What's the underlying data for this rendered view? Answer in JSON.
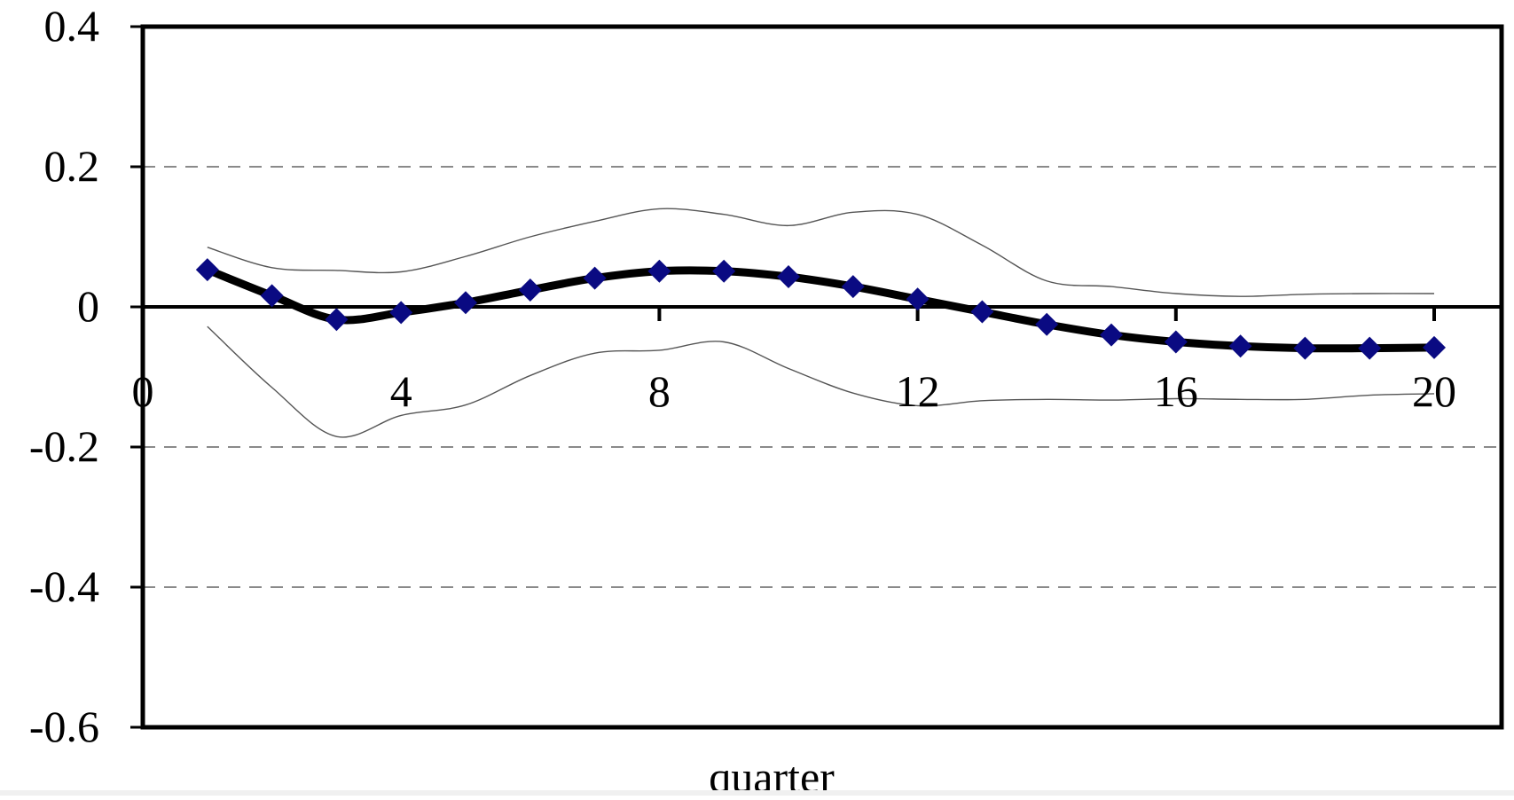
{
  "chart_data": {
    "type": "line",
    "title": "",
    "xlabel": "quarter",
    "ylabel": "",
    "xlim": [
      0,
      20
    ],
    "ylim": [
      -0.6,
      0.4
    ],
    "x_ticks": [
      0,
      4,
      8,
      12,
      16,
      20
    ],
    "x_tick_labels": [
      "0",
      "4",
      "8",
      "12",
      "16",
      "20"
    ],
    "y_ticks": [
      0.4,
      0.2,
      0,
      -0.2,
      -0.4,
      -0.6
    ],
    "y_tick_labels": [
      "0.4",
      "0.2",
      "0",
      "-0.2",
      "-0.4",
      "-0.6"
    ],
    "grid": "horizontal dashed",
    "legend": "none",
    "colors": {
      "main_line": "#000000",
      "marker": "#0a0a82",
      "band": "#555555",
      "grid": "#444444",
      "frame": "#000000"
    },
    "x": [
      1,
      2,
      3,
      4,
      5,
      6,
      7,
      8,
      9,
      10,
      11,
      12,
      13,
      14,
      15,
      16,
      17,
      18,
      19,
      20
    ],
    "series": [
      {
        "role": "estimate",
        "values": [
          0.053,
          0.016,
          -0.018,
          -0.008,
          0.006,
          0.024,
          0.041,
          0.051,
          0.051,
          0.043,
          0.029,
          0.011,
          -0.007,
          -0.025,
          -0.04,
          -0.05,
          -0.056,
          -0.059,
          -0.059,
          -0.058
        ]
      },
      {
        "role": "upper-band",
        "values": [
          0.085,
          0.056,
          0.052,
          0.05,
          0.072,
          0.1,
          0.122,
          0.14,
          0.132,
          0.116,
          0.135,
          0.132,
          0.088,
          0.037,
          0.029,
          0.019,
          0.015,
          0.018,
          0.019,
          0.019
        ]
      },
      {
        "role": "lower-band",
        "values": [
          -0.028,
          -0.115,
          -0.185,
          -0.155,
          -0.14,
          -0.098,
          -0.066,
          -0.062,
          -0.05,
          -0.088,
          -0.123,
          -0.141,
          -0.134,
          -0.132,
          -0.133,
          -0.131,
          -0.132,
          -0.132,
          -0.126,
          -0.124
        ]
      }
    ]
  }
}
